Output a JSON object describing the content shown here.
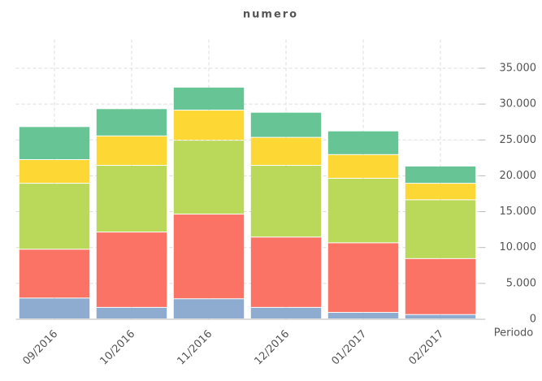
{
  "chart_data": {
    "type": "stacked_bar",
    "title": "numero",
    "x_label": "Periodo",
    "categories": [
      "09/2016",
      "10/2016",
      "11/2016",
      "12/2016",
      "01/2017",
      "02/2017"
    ],
    "series": [
      {
        "color": "#8eaccf",
        "values": [
          2900,
          1600,
          2800,
          1600,
          900,
          600
        ]
      },
      {
        "color": "#fa7364",
        "values": [
          6800,
          10500,
          11800,
          9800,
          9700,
          7800
        ]
      },
      {
        "color": "#bad85a",
        "values": [
          9200,
          9300,
          10300,
          10000,
          9000,
          8200
        ]
      },
      {
        "color": "#fdd835",
        "values": [
          3300,
          4100,
          4200,
          3900,
          3300,
          2300
        ]
      },
      {
        "color": "#66c495",
        "values": [
          4600,
          3800,
          3200,
          3500,
          3300,
          2400
        ]
      }
    ],
    "ylim": [
      0,
      39000
    ],
    "yticks": [
      0,
      {
        "value": 5000,
        "label": "5.000"
      },
      {
        "value": 10000,
        "label": "10.000"
      },
      {
        "value": 15000,
        "label": "15.000"
      },
      {
        "value": 20000,
        "label": "20.000"
      },
      {
        "value": 25000,
        "label": "25.000"
      },
      {
        "value": 30000,
        "label": "30.000"
      },
      {
        "value": 35000,
        "label": "35.000"
      }
    ],
    "grid": true
  }
}
